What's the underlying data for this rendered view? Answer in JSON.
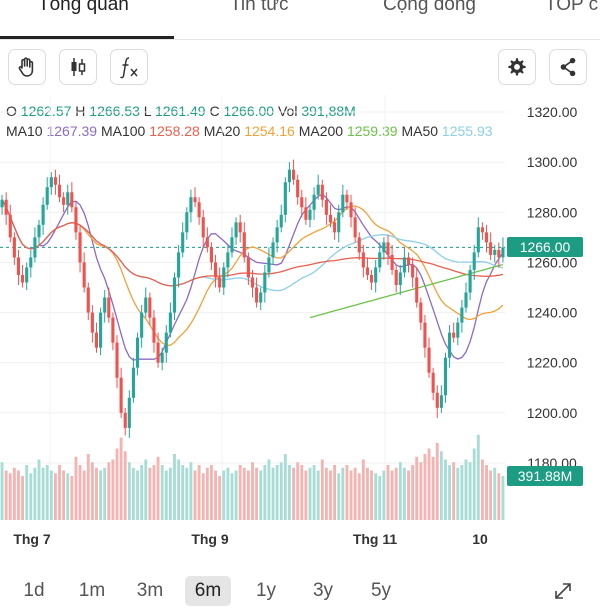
{
  "tabs": [
    {
      "label": "Tổng quan",
      "active": true
    },
    {
      "label": "Tin tức",
      "active": false
    },
    {
      "label": "Cộng đồng",
      "active": false
    },
    {
      "label": "TOP c",
      "active": false
    }
  ],
  "toolbar": {
    "left_icons": [
      "hand-drag-icon",
      "candlestick-icon",
      "function-fx-icon"
    ],
    "right_icons": [
      "gear-icon",
      "share-icon"
    ]
  },
  "ohlc": {
    "o_label": "O",
    "o": "1262.57",
    "h_label": "H",
    "h": "1266.53",
    "l_label": "L",
    "l": "1261.49",
    "c_label": "C",
    "c": "1266.00",
    "vol_label": "Vol",
    "vol": "391,88M"
  },
  "ma_legend": [
    {
      "label": "MA10",
      "value": "1267.39",
      "color": "#8b6bc4"
    },
    {
      "label": "MA100",
      "value": "1258.28",
      "color": "#e8604f"
    },
    {
      "label": "MA20",
      "value": "1254.16",
      "color": "#f2a13a"
    },
    {
      "label": "MA200",
      "value": "1259.39",
      "color": "#6cc24a"
    },
    {
      "label": "MA50",
      "value": "1255.93",
      "color": "#8ccfe8"
    }
  ],
  "chart_data": {
    "type": "candlestick",
    "y_ticks": [
      "1320.00",
      "1300.00",
      "1280.00",
      "1260.00",
      "1240.00",
      "1220.00",
      "1200.00",
      "1180.00"
    ],
    "y_range": [
      1175,
      1322
    ],
    "x_ticks": [
      "Thg 7",
      "Thg 9",
      "Thg 11",
      "10"
    ],
    "last_price": "1266.00",
    "last_volume": "391.88M",
    "up_color": "#26a69a",
    "down_color": "#ef5350",
    "close": [
      1285,
      1279,
      1270,
      1262,
      1255,
      1252,
      1258,
      1262,
      1270,
      1275,
      1283,
      1290,
      1294,
      1291,
      1286,
      1283,
      1288,
      1282,
      1272,
      1260,
      1250,
      1240,
      1232,
      1226,
      1240,
      1246,
      1238,
      1228,
      1214,
      1200,
      1194,
      1206,
      1218,
      1230,
      1240,
      1246,
      1238,
      1228,
      1220,
      1224,
      1232,
      1240,
      1254,
      1264,
      1272,
      1280,
      1286,
      1284,
      1278,
      1270,
      1266,
      1260,
      1254,
      1250,
      1258,
      1264,
      1270,
      1276,
      1272,
      1262,
      1254,
      1250,
      1244,
      1248,
      1256,
      1262,
      1268,
      1274,
      1279,
      1292,
      1297,
      1293,
      1286,
      1282,
      1277,
      1281,
      1287,
      1291,
      1285,
      1279,
      1276,
      1272,
      1280,
      1287,
      1284,
      1278,
      1270,
      1264,
      1258,
      1255,
      1252,
      1258,
      1264,
      1268,
      1263,
      1257,
      1251,
      1256,
      1262,
      1259,
      1254,
      1244,
      1236,
      1226,
      1216,
      1208,
      1202,
      1207,
      1222,
      1232,
      1230,
      1236,
      1242,
      1248,
      1257,
      1264,
      1274,
      1272,
      1268,
      1263,
      1265,
      1262,
      1266
    ],
    "volume": [
      1.05,
      0.9,
      0.85,
      0.95,
      0.9,
      0.8,
      1.0,
      0.85,
      0.95,
      1.1,
      0.95,
      1.0,
      0.9,
      0.85,
      1.0,
      0.9,
      0.85,
      0.8,
      1.15,
      1.0,
      0.9,
      1.2,
      1.05,
      0.95,
      0.9,
      0.95,
      1.05,
      1.1,
      1.3,
      1.5,
      1.25,
      1.05,
      0.95,
      0.9,
      1.0,
      1.1,
      0.95,
      1.0,
      1.15,
      1.0,
      0.9,
      0.95,
      1.2,
      1.1,
      1.0,
      0.95,
      1.05,
      0.9,
      1.0,
      0.85,
      0.95,
      1.0,
      0.9,
      0.8,
      0.9,
      0.95,
      0.85,
      0.9,
      1.0,
      0.95,
      0.9,
      1.05,
      0.95,
      0.9,
      1.0,
      1.1,
      0.95,
      1.0,
      1.05,
      1.2,
      1.0,
      0.95,
      1.05,
      1.0,
      0.9,
      0.95,
      1.0,
      0.9,
      1.1,
      0.95,
      0.9,
      1.0,
      0.85,
      0.95,
      1.0,
      0.9,
      0.95,
      0.85,
      1.1,
      0.95,
      0.9,
      0.85,
      0.8,
      0.9,
      1.0,
      0.9,
      0.95,
      1.05,
      0.95,
      0.9,
      1.0,
      1.15,
      1.05,
      1.2,
      1.3,
      1.15,
      1.4,
      1.25,
      1.1,
      1.0,
      1.05,
      0.95,
      1.0,
      1.1,
      1.05,
      1.3,
      1.55,
      1.1,
      1.0,
      0.9,
      0.95,
      0.85,
      0.8
    ]
  },
  "periods": [
    {
      "label": "1d",
      "active": false
    },
    {
      "label": "1m",
      "active": false
    },
    {
      "label": "3m",
      "active": false
    },
    {
      "label": "6m",
      "active": true
    },
    {
      "label": "1y",
      "active": false
    },
    {
      "label": "3y",
      "active": false
    },
    {
      "label": "5y",
      "active": false
    }
  ],
  "expand_icon": "expand-arrows-icon"
}
